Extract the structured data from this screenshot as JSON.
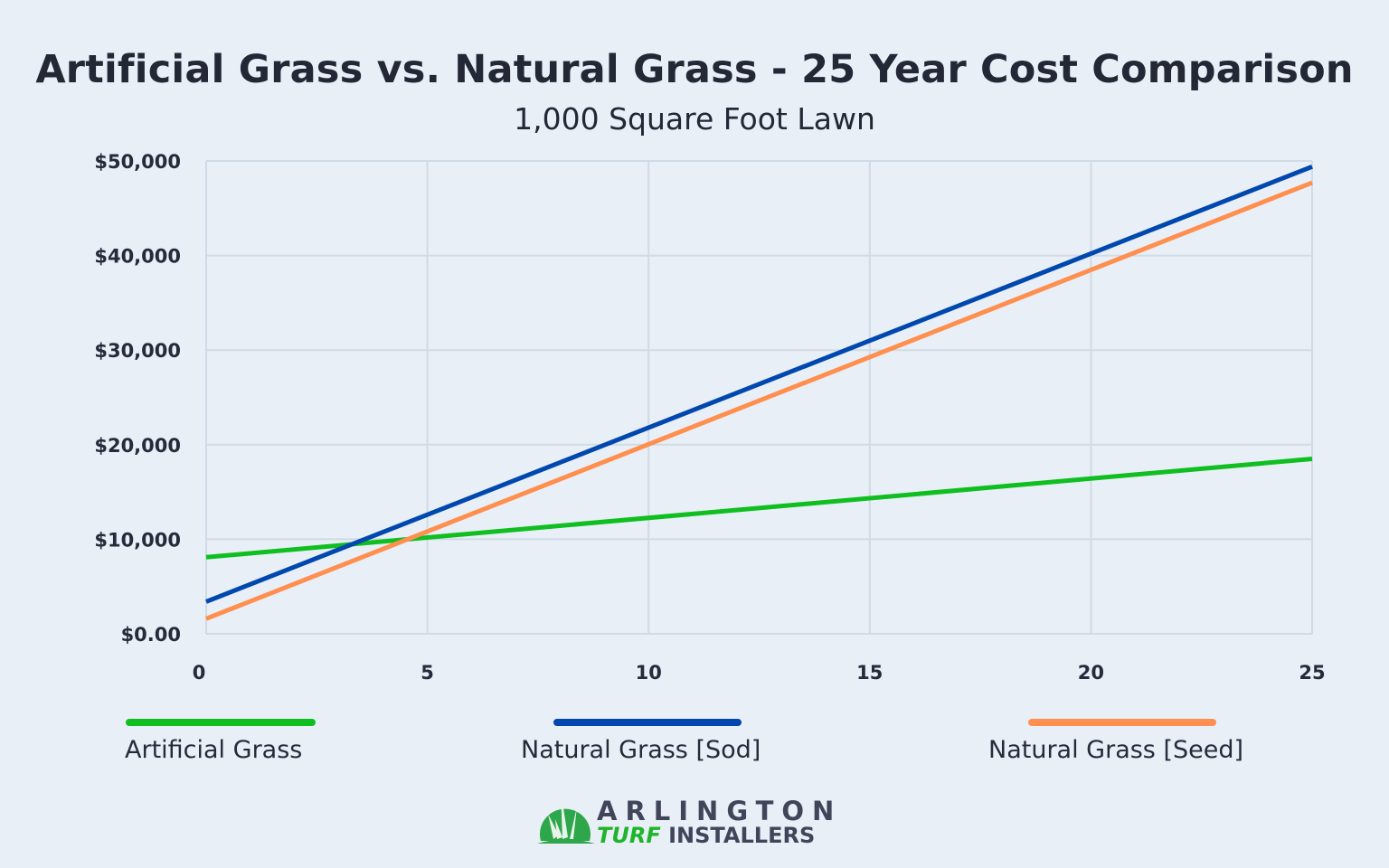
{
  "chart_data": {
    "type": "line",
    "title": "Artificial Grass vs. Natural Grass - 25 Year Cost Comparison",
    "subtitle": "1,000 Square Foot Lawn",
    "xlabel": "",
    "ylabel": "",
    "xlim": [
      0,
      25
    ],
    "ylim": [
      0,
      50000
    ],
    "x_ticks": [
      "0",
      "5",
      "10",
      "15",
      "20",
      "25"
    ],
    "x_tick_values": [
      0,
      5,
      10,
      15,
      20,
      25
    ],
    "y_ticks": [
      "$0.00",
      "$10,000",
      "$20,000",
      "$30,000",
      "$40,000",
      "$50,000"
    ],
    "y_tick_values": [
      0,
      10000,
      20000,
      30000,
      40000,
      50000
    ],
    "grid": true,
    "legend_position": "bottom",
    "series": [
      {
        "name": "Artificial Grass",
        "color": "#0fbf1f",
        "x": [
          0,
          25
        ],
        "y": [
          8100,
          18500
        ]
      },
      {
        "name": "Natural Grass [Sod]",
        "color": "#0048ae",
        "x": [
          0,
          25
        ],
        "y": [
          3400,
          49400
        ]
      },
      {
        "name": "Natural Grass [Seed]",
        "color": "#ff8f4f",
        "x": [
          0,
          25
        ],
        "y": [
          1600,
          47700
        ]
      }
    ]
  },
  "logo": {
    "line1": "ARLINGTON",
    "line2a": "TURF",
    "line2b": "INSTALLERS"
  }
}
